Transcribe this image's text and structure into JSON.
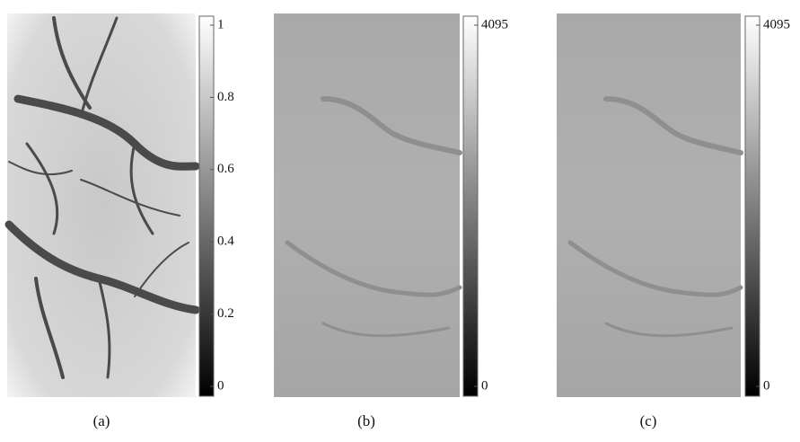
{
  "panels": [
    {
      "caption": "(a)",
      "colorbar": {
        "lim": [
          0,
          1
        ],
        "ticks": [
          0,
          0.2,
          0.4,
          0.6,
          0.8,
          1
        ]
      }
    },
    {
      "caption": "(b)",
      "colorbar": {
        "lim": [
          0,
          4095
        ],
        "ticks": [
          0,
          4095
        ]
      }
    },
    {
      "caption": "(c)",
      "colorbar": {
        "lim": [
          0,
          4095
        ],
        "ticks": [
          0,
          4095
        ]
      }
    }
  ]
}
